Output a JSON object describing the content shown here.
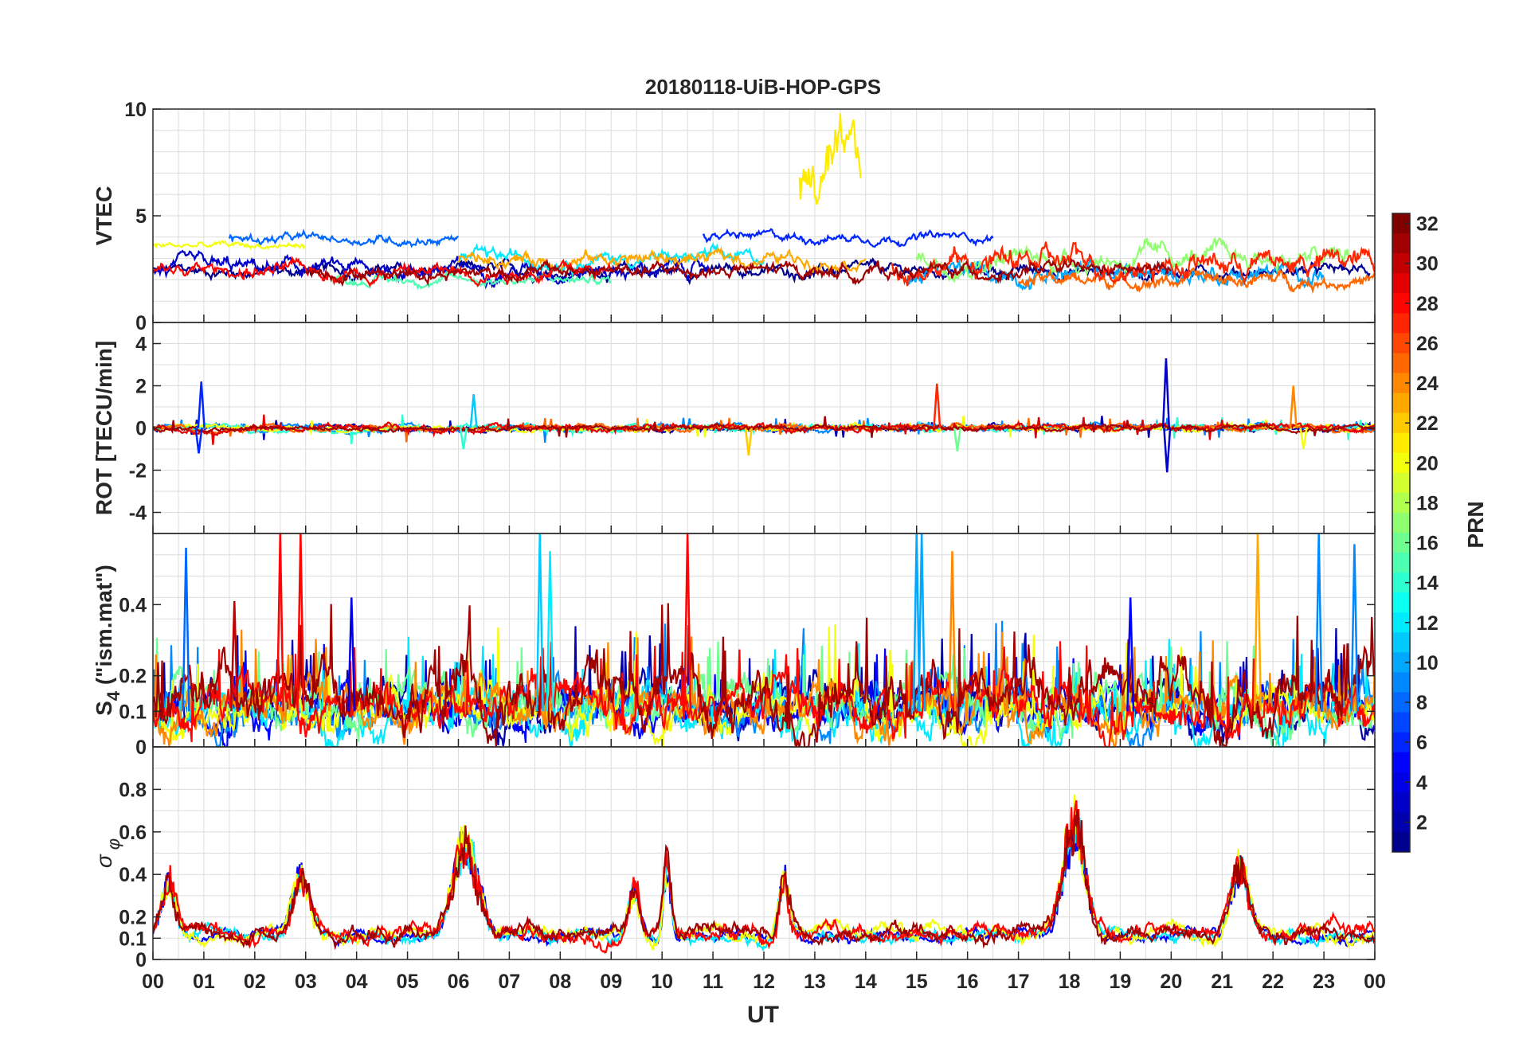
{
  "chart_data": {
    "type": "line",
    "title": "20180118-UiB-HOP-GPS",
    "xlabel": "UT",
    "x_ticks": [
      "00",
      "01",
      "02",
      "03",
      "04",
      "05",
      "06",
      "07",
      "08",
      "09",
      "10",
      "11",
      "12",
      "13",
      "14",
      "15",
      "16",
      "17",
      "18",
      "19",
      "20",
      "21",
      "22",
      "23",
      "00"
    ],
    "x_range_hours": [
      0,
      24
    ],
    "grid": true,
    "colorbar": {
      "label": "PRN",
      "range": [
        1,
        32
      ],
      "ticks": [
        2,
        4,
        6,
        8,
        10,
        12,
        14,
        16,
        18,
        20,
        22,
        24,
        26,
        28,
        30,
        32
      ],
      "colormap": "jet",
      "colormap_stops": [
        "#00008f",
        "#0000ff",
        "#0080ff",
        "#00ffff",
        "#80ff80",
        "#ffff00",
        "#ff8000",
        "#ff0000",
        "#800000"
      ],
      "placement": "right"
    },
    "panels": [
      {
        "id": "vtec",
        "ylabel": "VTEC",
        "ylim": [
          0,
          10
        ],
        "y_ticks": [
          0,
          5,
          10
        ],
        "series": [
          {
            "prn": 1,
            "start": 0.0,
            "end": 23.9,
            "base": 2.4,
            "noise": 0.25
          },
          {
            "prn": 3,
            "start": 0.0,
            "end": 11.0,
            "base": 2.5,
            "noise": 0.35
          },
          {
            "prn": 6,
            "start": 10.8,
            "end": 16.5,
            "base": 4.0,
            "noise": 0.2
          },
          {
            "prn": 8,
            "start": 1.5,
            "end": 6.0,
            "base": 3.9,
            "noise": 0.2
          },
          {
            "prn": 10,
            "start": 14.8,
            "end": 23.0,
            "base": 2.3,
            "noise": 0.4
          },
          {
            "prn": 12,
            "start": 6.0,
            "end": 12.0,
            "base": 3.0,
            "noise": 0.3
          },
          {
            "prn": 15,
            "start": 3.5,
            "end": 9.0,
            "base": 2.0,
            "noise": 0.2
          },
          {
            "prn": 17,
            "start": 15.0,
            "end": 23.5,
            "base": 3.0,
            "noise": 0.45
          },
          {
            "prn": 20,
            "start": 0.0,
            "end": 3.0,
            "base": 3.6,
            "noise": 0.15
          },
          {
            "prn": 21,
            "start": 12.7,
            "end": 13.9,
            "base": 6.5,
            "noise": 1.4
          },
          {
            "prn": 23,
            "start": 6.0,
            "end": 14.0,
            "base": 3.0,
            "noise": 0.3
          },
          {
            "prn": 25,
            "start": 17.0,
            "end": 24.0,
            "base": 2.0,
            "noise": 0.3
          },
          {
            "prn": 28,
            "start": 0.0,
            "end": 9.0,
            "base": 2.4,
            "noise": 0.3
          },
          {
            "prn": 27,
            "start": 14.5,
            "end": 24.0,
            "base": 2.8,
            "noise": 0.55
          },
          {
            "prn": 31,
            "start": 3.0,
            "end": 20.0,
            "base": 2.4,
            "noise": 0.3
          }
        ]
      },
      {
        "id": "rot",
        "ylabel": "ROT [TECU/min]",
        "ylim": [
          -5,
          5
        ],
        "y_ticks": [
          -4,
          -2,
          0,
          2,
          4
        ],
        "series": [
          {
            "prn": 2,
            "start": 0.0,
            "end": 24.0,
            "base": 0.0,
            "noise": 0.12
          },
          {
            "prn": 9,
            "start": 0.0,
            "end": 24.0,
            "base": 0.0,
            "noise": 0.14
          },
          {
            "prn": 14,
            "start": 0.0,
            "end": 24.0,
            "base": 0.0,
            "noise": 0.13
          },
          {
            "prn": 20,
            "start": 0.0,
            "end": 24.0,
            "base": 0.0,
            "noise": 0.12
          },
          {
            "prn": 25,
            "start": 0.0,
            "end": 24.0,
            "base": 0.0,
            "noise": 0.12
          },
          {
            "prn": 29,
            "start": 0.0,
            "end": 24.0,
            "base": 0.0,
            "noise": 0.15
          },
          {
            "prn": 31,
            "start": 0.0,
            "end": 24.0,
            "base": 0.0,
            "noise": 0.1
          }
        ],
        "spikes": [
          {
            "prn": 6,
            "t": 0.95,
            "y": 2.2
          },
          {
            "prn": 6,
            "t": 0.9,
            "y": -1.2
          },
          {
            "prn": 11,
            "t": 6.3,
            "y": 1.6
          },
          {
            "prn": 14,
            "t": 6.1,
            "y": -1.0
          },
          {
            "prn": 22,
            "t": 11.7,
            "y": -1.3
          },
          {
            "prn": 27,
            "t": 15.4,
            "y": 2.1
          },
          {
            "prn": 16,
            "t": 15.8,
            "y": -1.1
          },
          {
            "prn": 3,
            "t": 19.9,
            "y": 3.3
          },
          {
            "prn": 3,
            "t": 19.92,
            "y": -2.1
          },
          {
            "prn": 24,
            "t": 22.4,
            "y": 2.0
          },
          {
            "prn": 20,
            "t": 22.6,
            "y": -1.0
          }
        ]
      },
      {
        "id": "s4",
        "ylabel_main": "S",
        "ylabel_sub": "4",
        "ylabel_rest": " (\"ism.mat\")",
        "ylim": [
          0,
          0.6
        ],
        "y_ticks": [
          0,
          0.1,
          0.2,
          0.4
        ],
        "series": [
          {
            "prn": 2,
            "start": 0.0,
            "end": 24.0,
            "base": 0.12,
            "noise": 0.05
          },
          {
            "prn": 5,
            "start": 0.0,
            "end": 24.0,
            "base": 0.1,
            "noise": 0.05
          },
          {
            "prn": 9,
            "start": 0.0,
            "end": 24.0,
            "base": 0.11,
            "noise": 0.05
          },
          {
            "prn": 12,
            "start": 0.0,
            "end": 24.0,
            "base": 0.09,
            "noise": 0.05
          },
          {
            "prn": 16,
            "start": 0.0,
            "end": 24.0,
            "base": 0.12,
            "noise": 0.06
          },
          {
            "prn": 20,
            "start": 0.0,
            "end": 24.0,
            "base": 0.1,
            "noise": 0.05
          },
          {
            "prn": 24,
            "start": 0.0,
            "end": 24.0,
            "base": 0.11,
            "noise": 0.05
          },
          {
            "prn": 28,
            "start": 0.0,
            "end": 24.0,
            "base": 0.12,
            "noise": 0.06
          },
          {
            "prn": 31,
            "start": 0.0,
            "end": 24.0,
            "base": 0.14,
            "noise": 0.07
          }
        ],
        "spikes": [
          {
            "prn": 8,
            "t": 0.65,
            "y": 0.56
          },
          {
            "prn": 28,
            "t": 2.5,
            "y": 0.6
          },
          {
            "prn": 28,
            "t": 2.9,
            "y": 0.6
          },
          {
            "prn": 30,
            "t": 1.6,
            "y": 0.41
          },
          {
            "prn": 4,
            "t": 3.9,
            "y": 0.42
          },
          {
            "prn": 11,
            "t": 7.6,
            "y": 0.6
          },
          {
            "prn": 12,
            "t": 7.8,
            "y": 0.55
          },
          {
            "prn": 28,
            "t": 10.5,
            "y": 0.6
          },
          {
            "prn": 10,
            "t": 15.0,
            "y": 0.6
          },
          {
            "prn": 10,
            "t": 15.1,
            "y": 0.6
          },
          {
            "prn": 24,
            "t": 15.7,
            "y": 0.55
          },
          {
            "prn": 23,
            "t": 21.7,
            "y": 0.6
          },
          {
            "prn": 9,
            "t": 22.9,
            "y": 0.6
          },
          {
            "prn": 9,
            "t": 23.6,
            "y": 0.57
          },
          {
            "prn": 5,
            "t": 19.2,
            "y": 0.42
          }
        ]
      },
      {
        "id": "sigma",
        "ylabel": "σ φ",
        "ylim": [
          0,
          1
        ],
        "y_ticks": [
          0,
          0.1,
          0.2,
          0.4,
          0.6,
          0.8
        ],
        "series": [
          {
            "prn": 5,
            "start": 0.0,
            "end": 24.0,
            "base": 0.11,
            "noise": 0.025
          },
          {
            "prn": 12,
            "start": 0.0,
            "end": 24.0,
            "base": 0.11,
            "noise": 0.025
          },
          {
            "prn": 20,
            "start": 0.0,
            "end": 24.0,
            "base": 0.12,
            "noise": 0.03
          },
          {
            "prn": 28,
            "start": 0.0,
            "end": 24.0,
            "base": 0.12,
            "noise": 0.035
          },
          {
            "prn": 31,
            "start": 0.0,
            "end": 24.0,
            "base": 0.12,
            "noise": 0.035
          }
        ],
        "bumps": [
          {
            "t": 0.3,
            "y": 0.3,
            "w": 0.2
          },
          {
            "t": 2.9,
            "y": 0.33,
            "w": 0.25
          },
          {
            "t": 6.15,
            "y": 0.52,
            "w": 0.35
          },
          {
            "t": 9.45,
            "y": 0.3,
            "w": 0.15
          },
          {
            "t": 10.1,
            "y": 0.4,
            "w": 0.1
          },
          {
            "t": 12.4,
            "y": 0.33,
            "w": 0.15
          },
          {
            "t": 18.1,
            "y": 0.65,
            "w": 0.3
          },
          {
            "t": 21.35,
            "y": 0.41,
            "w": 0.25
          }
        ]
      }
    ]
  }
}
